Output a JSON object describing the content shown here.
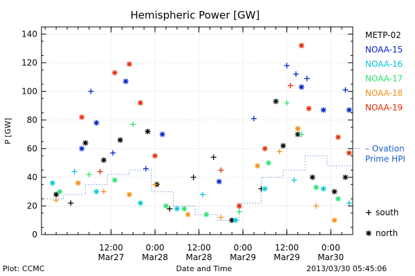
{
  "chart_data": {
    "type": "scatter",
    "title": "Hemispheric Power [GW]",
    "ylabel": "P [GW]",
    "xlabel": "Date and Time",
    "ylim": [
      0,
      145
    ],
    "yticks": [
      0,
      20,
      40,
      60,
      80,
      100,
      120,
      140
    ],
    "xlim": [
      "2013-03-26T17:00",
      "2013-03-30T06:00"
    ],
    "xticks": [
      {
        "time": "2013-03-27T12:00",
        "line1": "12:00",
        "line2": "Mar27"
      },
      {
        "time": "2013-03-28T00:00",
        "line1": "0:00",
        "line2": "Mar28"
      },
      {
        "time": "2013-03-28T12:00",
        "line1": "12:00",
        "line2": "Mar28"
      },
      {
        "time": "2013-03-29T00:00",
        "line1": "0:00",
        "line2": "Mar29"
      },
      {
        "time": "2013-03-29T12:00",
        "line1": "12:00",
        "line2": "Mar29"
      },
      {
        "time": "2013-03-30T00:00",
        "line1": "0:00",
        "line2": "Mar30"
      }
    ],
    "grid": true,
    "legend_position": "right",
    "series": [
      {
        "name": "METP-02",
        "color": "#000000",
        "points": [
          {
            "x": "2013-03-26T21:00",
            "y": 28,
            "m": "north"
          },
          {
            "x": "2013-03-27T01:00",
            "y": 22,
            "m": "south"
          },
          {
            "x": "2013-03-27T05:00",
            "y": 64,
            "m": "north"
          },
          {
            "x": "2013-03-27T10:00",
            "y": 52,
            "m": "north"
          },
          {
            "x": "2013-03-27T14:30",
            "y": 66,
            "m": "north"
          },
          {
            "x": "2013-03-27T22:00",
            "y": 72,
            "m": "north"
          },
          {
            "x": "2013-03-28T00:30",
            "y": 35,
            "m": "north"
          },
          {
            "x": "2013-03-28T04:00",
            "y": 18,
            "m": "south"
          },
          {
            "x": "2013-03-28T10:30",
            "y": 40,
            "m": "south"
          },
          {
            "x": "2013-03-28T16:00",
            "y": 54,
            "m": "south"
          },
          {
            "x": "2013-03-28T21:00",
            "y": 10,
            "m": "north"
          },
          {
            "x": "2013-03-29T05:00",
            "y": 32,
            "m": "south"
          },
          {
            "x": "2013-03-29T09:00",
            "y": 93,
            "m": "north"
          },
          {
            "x": "2013-03-29T11:00",
            "y": 62,
            "m": "north"
          },
          {
            "x": "2013-03-29T15:00",
            "y": 70,
            "m": "north"
          },
          {
            "x": "2013-03-29T19:00",
            "y": 40,
            "m": "north"
          },
          {
            "x": "2013-03-30T01:00",
            "y": 30,
            "m": "north"
          },
          {
            "x": "2013-03-30T04:00",
            "y": 40,
            "m": "north"
          }
        ]
      },
      {
        "name": "NOAA-15",
        "color": "#0020c8",
        "points": [
          {
            "x": "2013-03-27T04:00",
            "y": 60,
            "m": "north"
          },
          {
            "x": "2013-03-27T06:30",
            "y": 100,
            "m": "south"
          },
          {
            "x": "2013-03-27T08:00",
            "y": 78,
            "m": "north"
          },
          {
            "x": "2013-03-27T12:30",
            "y": 57,
            "m": "south"
          },
          {
            "x": "2013-03-27T16:00",
            "y": 107,
            "m": "north"
          },
          {
            "x": "2013-03-27T21:30",
            "y": 46,
            "m": "south"
          },
          {
            "x": "2013-03-28T02:00",
            "y": 70,
            "m": "north"
          },
          {
            "x": "2013-03-28T17:30",
            "y": 37,
            "m": "north"
          },
          {
            "x": "2013-03-29T03:00",
            "y": 81,
            "m": "south"
          },
          {
            "x": "2013-03-29T12:00",
            "y": 118,
            "m": "south"
          },
          {
            "x": "2013-03-29T14:30",
            "y": 112,
            "m": "south"
          },
          {
            "x": "2013-03-29T16:00",
            "y": 103,
            "m": "north"
          },
          {
            "x": "2013-03-29T17:30",
            "y": 109,
            "m": "south"
          },
          {
            "x": "2013-03-29T22:00",
            "y": 87,
            "m": "north"
          },
          {
            "x": "2013-03-30T04:00",
            "y": 101,
            "m": "south"
          },
          {
            "x": "2013-03-30T05:00",
            "y": 87,
            "m": "north"
          }
        ]
      },
      {
        "name": "NOAA-16",
        "color": "#00c8d8",
        "points": [
          {
            "x": "2013-03-26T20:00",
            "y": 36,
            "m": "north"
          },
          {
            "x": "2013-03-27T02:00",
            "y": 44,
            "m": "south"
          },
          {
            "x": "2013-03-27T08:00",
            "y": 30,
            "m": "north"
          },
          {
            "x": "2013-03-27T20:00",
            "y": 22,
            "m": "north"
          },
          {
            "x": "2013-03-28T06:00",
            "y": 18,
            "m": "north"
          },
          {
            "x": "2013-03-28T13:00",
            "y": 28,
            "m": "south"
          },
          {
            "x": "2013-03-28T22:00",
            "y": 10,
            "m": "north"
          },
          {
            "x": "2013-03-29T06:00",
            "y": 32,
            "m": "north"
          },
          {
            "x": "2013-03-29T14:00",
            "y": 38,
            "m": "south"
          },
          {
            "x": "2013-03-29T22:00",
            "y": 32,
            "m": "north"
          },
          {
            "x": "2013-03-30T05:00",
            "y": 22,
            "m": "south"
          }
        ]
      },
      {
        "name": "NOAA-17",
        "color": "#28e070",
        "points": [
          {
            "x": "2013-03-26T22:00",
            "y": 30,
            "m": "north"
          },
          {
            "x": "2013-03-27T06:00",
            "y": 42,
            "m": "south"
          },
          {
            "x": "2013-03-27T13:00",
            "y": 38,
            "m": "north"
          },
          {
            "x": "2013-03-27T18:00",
            "y": 77,
            "m": "south"
          },
          {
            "x": "2013-03-28T03:00",
            "y": 20,
            "m": "north"
          },
          {
            "x": "2013-03-28T08:00",
            "y": 18,
            "m": "north"
          },
          {
            "x": "2013-03-28T14:00",
            "y": 14,
            "m": "north"
          },
          {
            "x": "2013-03-28T23:00",
            "y": 16,
            "m": "south"
          },
          {
            "x": "2013-03-29T07:00",
            "y": 50,
            "m": "north"
          },
          {
            "x": "2013-03-29T12:00",
            "y": 92,
            "m": "south"
          },
          {
            "x": "2013-03-29T16:00",
            "y": 70,
            "m": "south"
          },
          {
            "x": "2013-03-29T20:00",
            "y": 33,
            "m": "north"
          },
          {
            "x": "2013-03-30T02:00",
            "y": 25,
            "m": "north"
          }
        ]
      },
      {
        "name": "NOAA-18",
        "color": "#f09018",
        "points": [
          {
            "x": "2013-03-26T21:00",
            "y": 24,
            "m": "south"
          },
          {
            "x": "2013-03-27T03:00",
            "y": 36,
            "m": "north"
          },
          {
            "x": "2013-03-27T10:00",
            "y": 30,
            "m": "south"
          },
          {
            "x": "2013-03-27T17:00",
            "y": 28,
            "m": "north"
          },
          {
            "x": "2013-03-28T00:00",
            "y": 35,
            "m": "south"
          },
          {
            "x": "2013-03-28T09:00",
            "y": 14,
            "m": "north"
          },
          {
            "x": "2013-03-28T18:00",
            "y": 12,
            "m": "south"
          },
          {
            "x": "2013-03-29T04:00",
            "y": 48,
            "m": "north"
          },
          {
            "x": "2013-03-29T10:00",
            "y": 58,
            "m": "south"
          },
          {
            "x": "2013-03-29T15:00",
            "y": 74,
            "m": "north"
          },
          {
            "x": "2013-03-29T20:00",
            "y": 20,
            "m": "south"
          },
          {
            "x": "2013-03-30T01:00",
            "y": 10,
            "m": "north"
          }
        ]
      },
      {
        "name": "NOAA-19",
        "color": "#e02800",
        "points": [
          {
            "x": "2013-03-27T04:00",
            "y": 82,
            "m": "north"
          },
          {
            "x": "2013-03-27T09:00",
            "y": 44,
            "m": "south"
          },
          {
            "x": "2013-03-27T13:00",
            "y": 113,
            "m": "north"
          },
          {
            "x": "2013-03-27T17:00",
            "y": 119,
            "m": "north"
          },
          {
            "x": "2013-03-27T20:00",
            "y": 92,
            "m": "north"
          },
          {
            "x": "2013-03-28T00:00",
            "y": 55,
            "m": "north"
          },
          {
            "x": "2013-03-28T18:00",
            "y": 45,
            "m": "south"
          },
          {
            "x": "2013-03-28T23:00",
            "y": 20,
            "m": "north"
          },
          {
            "x": "2013-03-29T06:00",
            "y": 60,
            "m": "north"
          },
          {
            "x": "2013-03-29T13:00",
            "y": 104,
            "m": "south"
          },
          {
            "x": "2013-03-29T16:00",
            "y": 132,
            "m": "north"
          },
          {
            "x": "2013-03-29T18:00",
            "y": 88,
            "m": "north"
          },
          {
            "x": "2013-03-30T02:00",
            "y": 68,
            "m": "north"
          },
          {
            "x": "2013-03-30T05:00",
            "y": 57,
            "m": "north"
          }
        ]
      }
    ],
    "ovation": {
      "name": "Ovation Prime HPI",
      "name_line1": "Ovation",
      "name_line2": "Prime HPI",
      "color": "#1a5ec8",
      "points": [
        {
          "x": "2013-03-26T17:00",
          "y": 25
        },
        {
          "x": "2013-03-26T23:00",
          "y": 28
        },
        {
          "x": "2013-03-27T05:00",
          "y": 35
        },
        {
          "x": "2013-03-27T11:00",
          "y": 42
        },
        {
          "x": "2013-03-27T17:00",
          "y": 45
        },
        {
          "x": "2013-03-27T23:00",
          "y": 30
        },
        {
          "x": "2013-03-28T05:00",
          "y": 20
        },
        {
          "x": "2013-03-28T11:00",
          "y": 14
        },
        {
          "x": "2013-03-28T17:00",
          "y": 10
        },
        {
          "x": "2013-03-28T23:00",
          "y": 22
        },
        {
          "x": "2013-03-29T05:00",
          "y": 40
        },
        {
          "x": "2013-03-29T11:00",
          "y": 45
        },
        {
          "x": "2013-03-29T17:00",
          "y": 55
        },
        {
          "x": "2013-03-29T23:00",
          "y": 48
        },
        {
          "x": "2013-03-30T06:00",
          "y": 40
        }
      ]
    },
    "marker_legend": {
      "south_label": "south",
      "north_label": "north"
    }
  },
  "footer": {
    "plot_label": "Plot: CCMC",
    "timestamp": "2013/03/30 05:45:06"
  }
}
